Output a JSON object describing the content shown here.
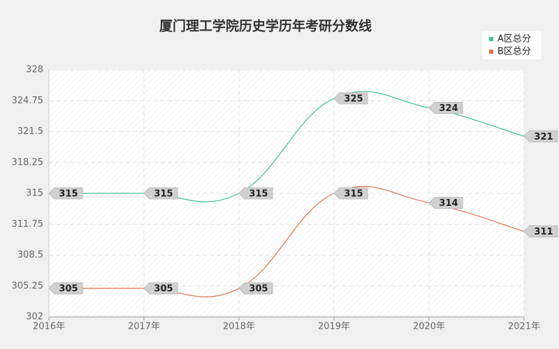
{
  "chart_data": {
    "type": "line",
    "title": "厦门理工学院历史学历年考研分数线",
    "categories": [
      "2016年",
      "2017年",
      "2018年",
      "2019年",
      "2020年",
      "2021年"
    ],
    "series": [
      {
        "name": "A区总分",
        "color": "#3dbf9c",
        "values": [
          315,
          315,
          315,
          325,
          324,
          321
        ]
      },
      {
        "name": "B区总分",
        "color": "#e0744a",
        "values": [
          305,
          305,
          305,
          315,
          314,
          311
        ]
      }
    ],
    "ylim": [
      302,
      328
    ],
    "yticks": [
      302,
      305.25,
      308.5,
      311.75,
      315,
      318.25,
      321.5,
      324.75,
      328
    ],
    "grid": true,
    "legend": "top-right"
  }
}
